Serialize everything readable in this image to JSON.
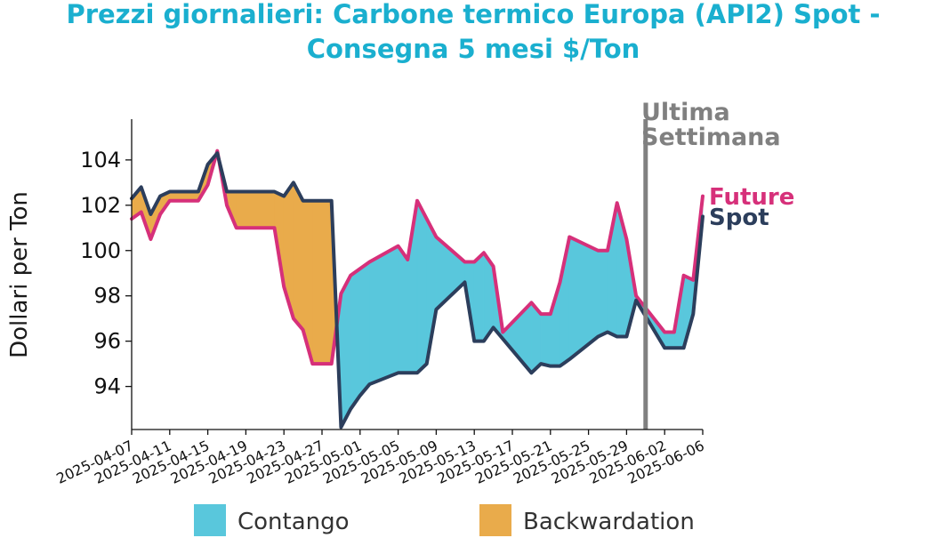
{
  "chart_data": {
    "type": "line",
    "title_line1": "Prezzi giornalieri: Carbone termico Europa (API2) Spot -",
    "title_line2": "Consegna 5 mesi $/Ton",
    "ylabel": "Dollari per Ton",
    "xlabel": "",
    "ylim": [
      92.1,
      105.8
    ],
    "yticks": [
      94,
      96,
      98,
      100,
      102,
      104
    ],
    "xlim": [
      "2025-04-07",
      "2025-06-06"
    ],
    "xticks": [
      "2025-04-07",
      "2025-04-11",
      "2025-04-15",
      "2025-04-19",
      "2025-04-23",
      "2025-04-27",
      "2025-05-01",
      "2025-05-05",
      "2025-05-09",
      "2025-05-13",
      "2025-05-17",
      "2025-05-21",
      "2025-05-25",
      "2025-05-29",
      "2025-06-02",
      "2025-06-06"
    ],
    "annotation_line1": "Ultima",
    "annotation_line2": "Settimana",
    "annotation_date": "2025-05-31",
    "legend": {
      "contango": "Contango",
      "backwardation": "Backwardation",
      "placement": "bottom"
    },
    "colors": {
      "future": "#d6307a",
      "spot": "#2c3e5c",
      "contango": "#59c7dc",
      "backwardation": "#e9ab4b",
      "vline": "#808080",
      "title": "#1aafcf"
    },
    "series": [
      {
        "name": "Future",
        "x": [
          "2025-04-07",
          "2025-04-08",
          "2025-04-09",
          "2025-04-10",
          "2025-04-11",
          "2025-04-14",
          "2025-04-15",
          "2025-04-16",
          "2025-04-17",
          "2025-04-18",
          "2025-04-22",
          "2025-04-23",
          "2025-04-24",
          "2025-04-25",
          "2025-04-26",
          "2025-04-28",
          "2025-04-29",
          "2025-04-30",
          "2025-05-01",
          "2025-05-02",
          "2025-05-05",
          "2025-05-06",
          "2025-05-07",
          "2025-05-08",
          "2025-05-09",
          "2025-05-12",
          "2025-05-13",
          "2025-05-14",
          "2025-05-15",
          "2025-05-16",
          "2025-05-19",
          "2025-05-20",
          "2025-05-21",
          "2025-05-22",
          "2025-05-23",
          "2025-05-26",
          "2025-05-27",
          "2025-05-28",
          "2025-05-29",
          "2025-05-30",
          "2025-06-02",
          "2025-06-03",
          "2025-06-04",
          "2025-06-05",
          "2025-06-06"
        ],
        "values": [
          101.4,
          101.7,
          100.5,
          101.6,
          102.2,
          102.2,
          102.9,
          104.4,
          102.0,
          101.0,
          101.0,
          98.4,
          97.0,
          96.5,
          95.0,
          95.0,
          98.1,
          98.9,
          99.2,
          99.5,
          100.2,
          99.6,
          102.2,
          101.4,
          100.6,
          99.5,
          99.5,
          99.9,
          99.3,
          96.4,
          97.7,
          97.2,
          97.2,
          98.6,
          100.6,
          100.0,
          100.0,
          102.1,
          100.5,
          98.0,
          96.4,
          96.4,
          98.9,
          98.7,
          102.4
        ]
      },
      {
        "name": "Spot",
        "x": [
          "2025-04-07",
          "2025-04-08",
          "2025-04-09",
          "2025-04-10",
          "2025-04-11",
          "2025-04-14",
          "2025-04-15",
          "2025-04-16",
          "2025-04-17",
          "2025-04-18",
          "2025-04-22",
          "2025-04-23",
          "2025-04-24",
          "2025-04-25",
          "2025-04-26",
          "2025-04-28",
          "2025-04-29",
          "2025-04-30",
          "2025-05-01",
          "2025-05-02",
          "2025-05-05",
          "2025-05-06",
          "2025-05-07",
          "2025-05-08",
          "2025-05-09",
          "2025-05-12",
          "2025-05-13",
          "2025-05-14",
          "2025-05-15",
          "2025-05-16",
          "2025-05-19",
          "2025-05-20",
          "2025-05-21",
          "2025-05-22",
          "2025-05-23",
          "2025-05-26",
          "2025-05-27",
          "2025-05-28",
          "2025-05-29",
          "2025-05-30",
          "2025-06-02",
          "2025-06-03",
          "2025-06-04",
          "2025-06-05",
          "2025-06-06"
        ],
        "values": [
          102.3,
          102.8,
          101.6,
          102.4,
          102.6,
          102.6,
          103.8,
          104.3,
          102.6,
          102.6,
          102.6,
          102.4,
          103.0,
          102.2,
          102.2,
          102.2,
          92.2,
          93.0,
          93.6,
          94.1,
          94.6,
          94.6,
          94.6,
          95.0,
          97.4,
          98.6,
          96.0,
          96.0,
          96.6,
          96.1,
          94.6,
          95.0,
          94.9,
          94.9,
          95.2,
          96.2,
          96.4,
          96.2,
          96.2,
          97.8,
          95.7,
          95.7,
          95.7,
          97.2,
          101.5
        ]
      }
    ]
  }
}
